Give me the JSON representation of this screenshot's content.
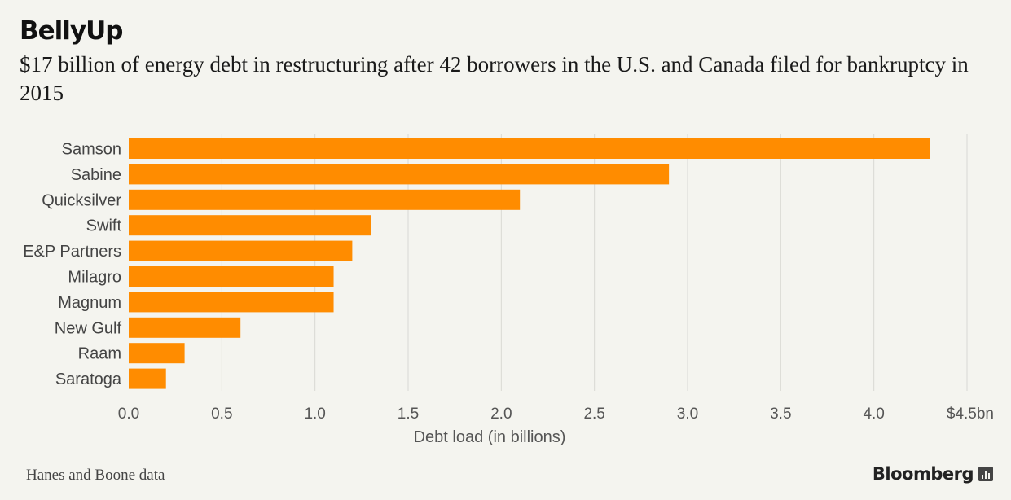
{
  "header": {
    "title": "BellyUp",
    "subtitle": "$17 billion of energy debt in restructuring after 42 borrowers in the U.S. and Canada filed for bankruptcy in 2015"
  },
  "footer": {
    "source": "Hanes and Boone data",
    "brand": "Bloomberg"
  },
  "colors": {
    "bar": "#ff8c00",
    "grid": "#d9d9d4",
    "background": "#f4f4ef"
  },
  "chart_data": {
    "type": "bar",
    "orientation": "horizontal",
    "categories": [
      "Samson",
      "Sabine",
      "Quicksilver",
      "Swift",
      "E&P Partners",
      "Milagro",
      "Magnum",
      "New Gulf",
      "Raam",
      "Saratoga"
    ],
    "values": [
      4.3,
      2.9,
      2.1,
      1.3,
      1.2,
      1.1,
      1.1,
      0.6,
      0.3,
      0.2
    ],
    "xlabel": "Debt load (in billions)",
    "xlim": [
      0,
      4.5
    ],
    "ticks": [
      {
        "value": 0.0,
        "label": "0.0"
      },
      {
        "value": 0.5,
        "label": "0.5"
      },
      {
        "value": 1.0,
        "label": "1.0"
      },
      {
        "value": 1.5,
        "label": "1.5"
      },
      {
        "value": 2.0,
        "label": "2.0"
      },
      {
        "value": 2.5,
        "label": "2.5"
      },
      {
        "value": 3.0,
        "label": "3.0"
      },
      {
        "value": 3.5,
        "label": "3.5"
      },
      {
        "value": 4.0,
        "label": "4.0"
      },
      {
        "value": 4.5,
        "label": "$4.5bn"
      }
    ],
    "grid": true
  }
}
